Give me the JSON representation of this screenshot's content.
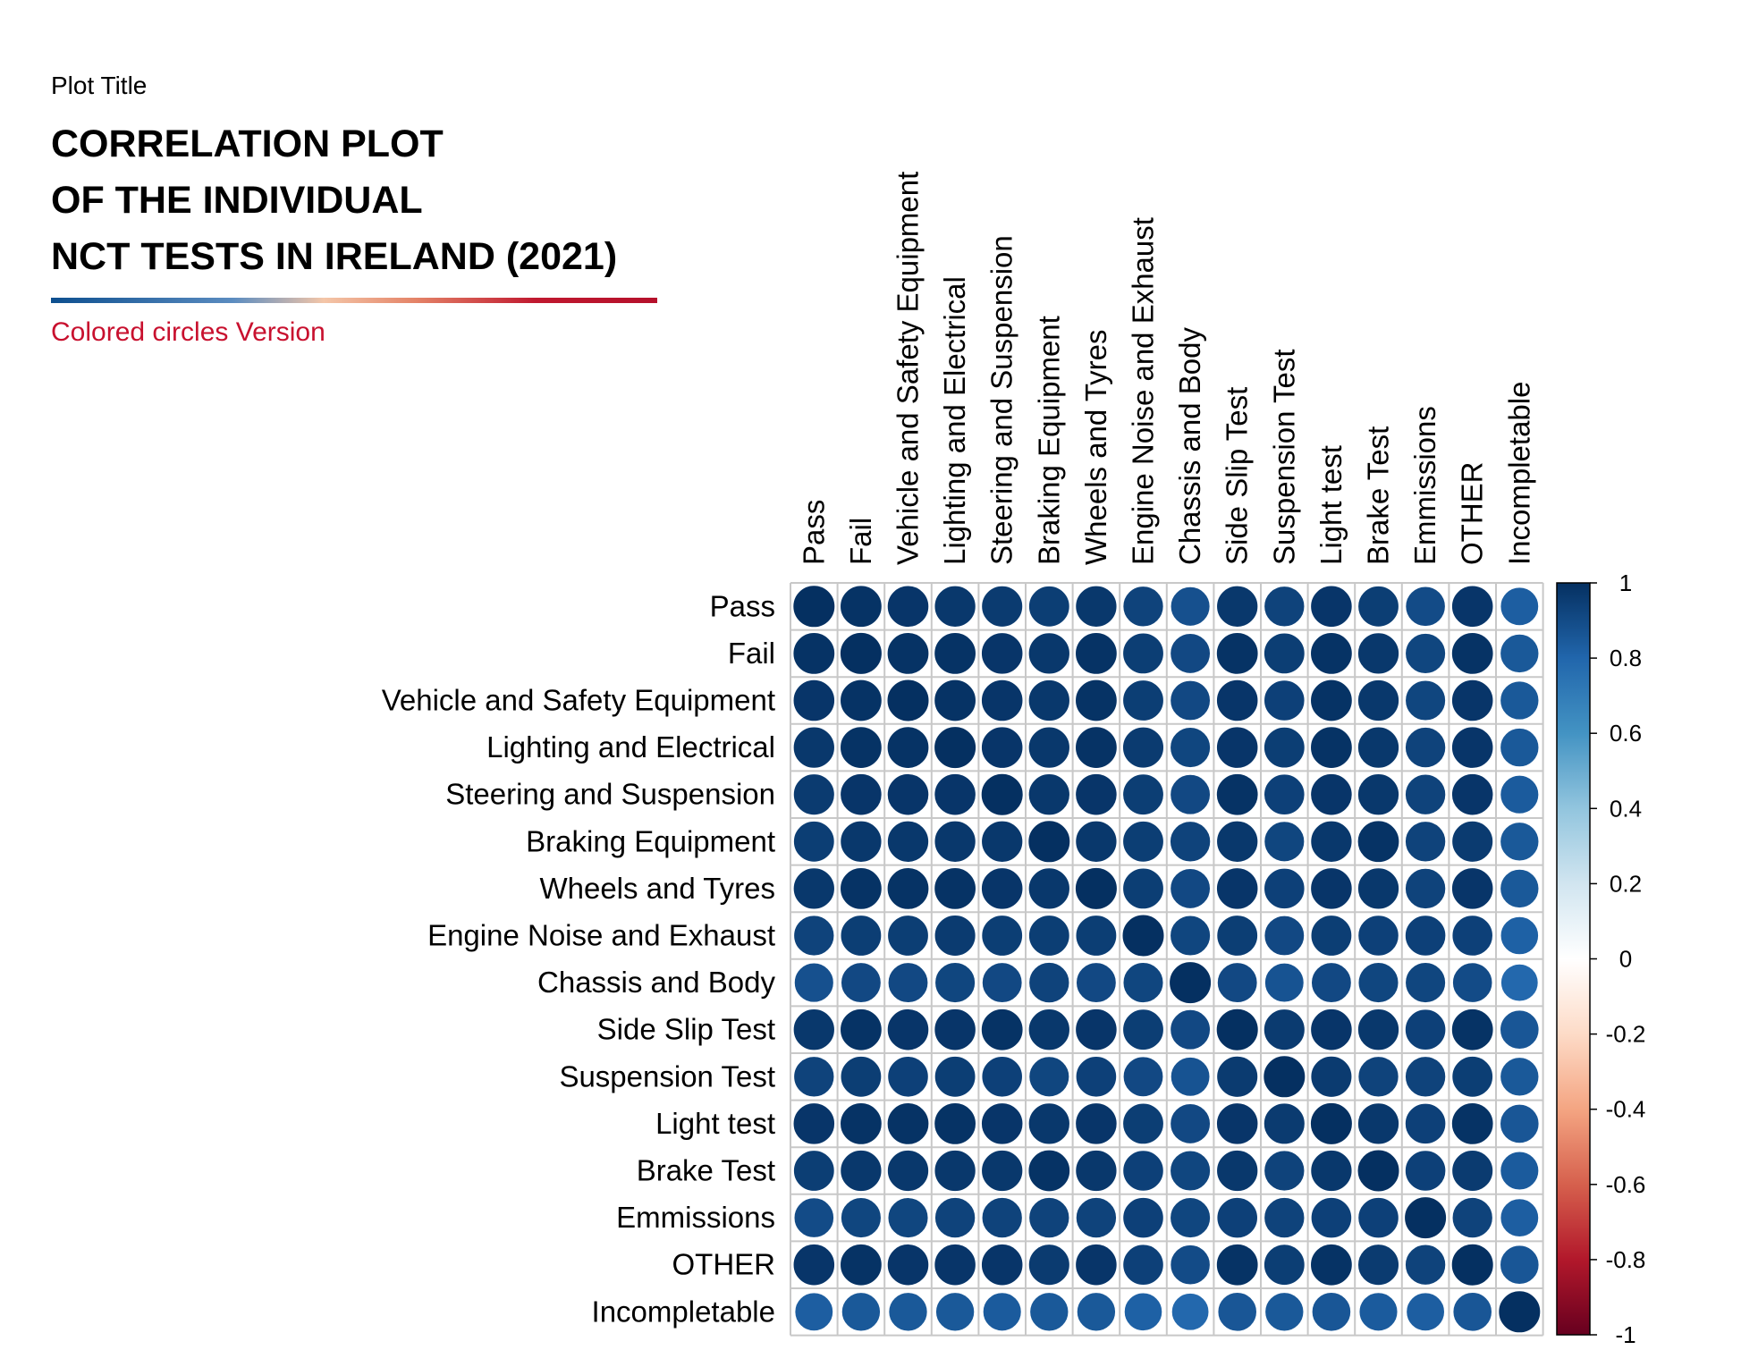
{
  "header": {
    "plot_tag": "Plot Title",
    "title": "CORRELATION PLOT\nOF THE INDIVIDUAL\nNCT TESTS IN IRELAND (2021)",
    "subtitle": "Colored circles Version"
  },
  "colors": {
    "accent_red": "#c8102e",
    "grid": "#c8c8c8",
    "text": "#000000"
  },
  "chart_data": {
    "type": "heatmap",
    "style": "circles",
    "title": "CORRELATION PLOT OF THE INDIVIDUAL NCT TESTS IN IRELAND (2021)",
    "labels": [
      "Pass",
      "Fail",
      "Vehicle and Safety Equipment",
      "Lighting and Electrical",
      "Steering and Suspension",
      "Braking Equipment",
      "Wheels and Tyres",
      "Engine Noise and Exhaust",
      "Chassis and Body",
      "Side Slip Test",
      "Suspension Test",
      "Light test",
      "Brake Test",
      "Emmissions",
      "OTHER",
      "Incompletable"
    ],
    "values": [
      [
        1.0,
        0.99,
        0.98,
        0.97,
        0.96,
        0.95,
        0.97,
        0.93,
        0.88,
        0.97,
        0.93,
        0.98,
        0.95,
        0.9,
        0.98,
        0.83
      ],
      [
        0.99,
        1.0,
        0.99,
        0.99,
        0.98,
        0.97,
        0.99,
        0.95,
        0.91,
        0.99,
        0.95,
        0.99,
        0.97,
        0.92,
        0.99,
        0.85
      ],
      [
        0.98,
        0.99,
        1.0,
        0.99,
        0.98,
        0.97,
        0.99,
        0.95,
        0.91,
        0.98,
        0.94,
        0.99,
        0.97,
        0.92,
        0.98,
        0.85
      ],
      [
        0.97,
        0.99,
        0.99,
        1.0,
        0.98,
        0.97,
        0.99,
        0.96,
        0.92,
        0.98,
        0.95,
        0.99,
        0.97,
        0.93,
        0.98,
        0.85
      ],
      [
        0.96,
        0.98,
        0.98,
        0.98,
        1.0,
        0.97,
        0.98,
        0.95,
        0.91,
        0.99,
        0.94,
        0.98,
        0.97,
        0.93,
        0.98,
        0.84
      ],
      [
        0.95,
        0.97,
        0.97,
        0.97,
        0.97,
        1.0,
        0.97,
        0.95,
        0.93,
        0.97,
        0.92,
        0.97,
        0.99,
        0.93,
        0.96,
        0.85
      ],
      [
        0.97,
        0.99,
        0.99,
        0.99,
        0.98,
        0.97,
        1.0,
        0.95,
        0.91,
        0.98,
        0.94,
        0.98,
        0.97,
        0.93,
        0.98,
        0.85
      ],
      [
        0.93,
        0.95,
        0.95,
        0.96,
        0.95,
        0.95,
        0.95,
        1.0,
        0.92,
        0.95,
        0.91,
        0.95,
        0.94,
        0.94,
        0.94,
        0.82
      ],
      [
        0.88,
        0.91,
        0.91,
        0.92,
        0.91,
        0.93,
        0.91,
        0.92,
        1.0,
        0.91,
        0.87,
        0.91,
        0.92,
        0.92,
        0.9,
        0.79
      ],
      [
        0.97,
        0.99,
        0.98,
        0.98,
        0.99,
        0.97,
        0.98,
        0.95,
        0.91,
        1.0,
        0.96,
        0.98,
        0.97,
        0.94,
        0.99,
        0.86
      ],
      [
        0.93,
        0.95,
        0.94,
        0.95,
        0.94,
        0.92,
        0.94,
        0.91,
        0.87,
        0.96,
        1.0,
        0.96,
        0.93,
        0.93,
        0.95,
        0.85
      ],
      [
        0.98,
        0.99,
        0.99,
        0.99,
        0.98,
        0.97,
        0.98,
        0.95,
        0.91,
        0.98,
        0.96,
        1.0,
        0.97,
        0.94,
        0.99,
        0.86
      ],
      [
        0.95,
        0.97,
        0.97,
        0.97,
        0.97,
        0.99,
        0.97,
        0.94,
        0.92,
        0.97,
        0.93,
        0.97,
        1.0,
        0.94,
        0.96,
        0.84
      ],
      [
        0.9,
        0.92,
        0.92,
        0.93,
        0.93,
        0.93,
        0.93,
        0.94,
        0.92,
        0.94,
        0.93,
        0.94,
        0.94,
        1.0,
        0.93,
        0.83
      ],
      [
        0.98,
        0.99,
        0.98,
        0.98,
        0.98,
        0.96,
        0.98,
        0.94,
        0.9,
        0.99,
        0.95,
        0.99,
        0.96,
        0.93,
        1.0,
        0.86
      ],
      [
        0.83,
        0.85,
        0.85,
        0.85,
        0.84,
        0.85,
        0.85,
        0.82,
        0.79,
        0.86,
        0.85,
        0.86,
        0.84,
        0.83,
        0.86,
        1.0
      ]
    ],
    "colorbar": {
      "ticks": [
        "1",
        "0.8",
        "0.6",
        "0.4",
        "0.2",
        "0",
        "-0.2",
        "-0.4",
        "-0.6",
        "-0.8",
        "-1"
      ],
      "range": [
        -1,
        1
      ]
    }
  }
}
